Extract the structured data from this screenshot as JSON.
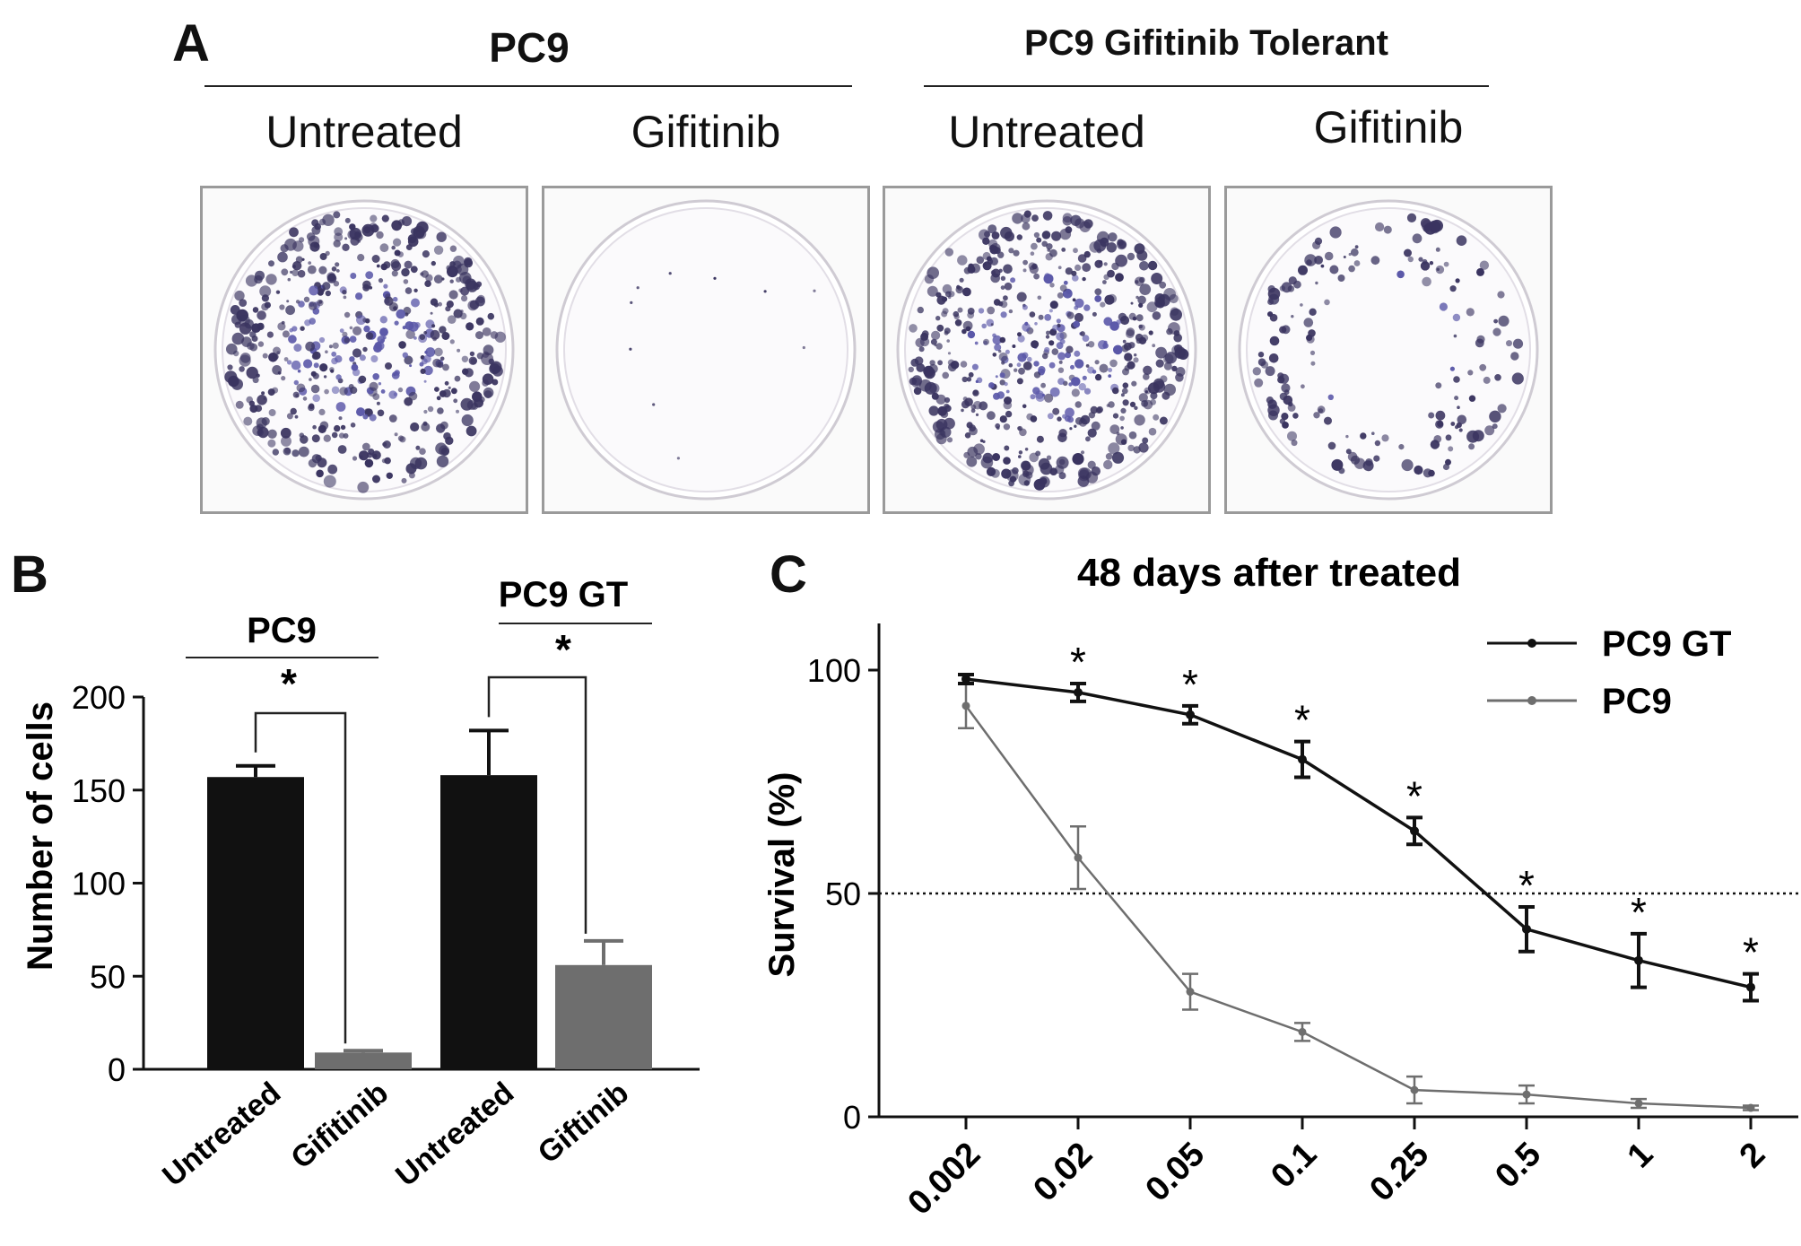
{
  "panel_a": {
    "letter": "A",
    "group1": "PC9",
    "group2": "PC9 Gifitinib Tolerant",
    "conditions": [
      "Untreated",
      "Gifitinib",
      "Untreated",
      "Gifitinib"
    ]
  },
  "panel_b": {
    "letter": "B",
    "sig_label_pc9": "PC9",
    "sig_label_gt": "PC9 GT",
    "star": "*"
  },
  "panel_c": {
    "letter": "C",
    "star": "*"
  },
  "colors": {
    "black_series": "#111111",
    "grey_series": "#6e6e6e",
    "stain": "#3a3460"
  },
  "chart_data": [
    {
      "type": "bar",
      "ylabel": "Number of cells",
      "ylim": [
        0,
        200
      ],
      "yticks": [
        0,
        50,
        100,
        150,
        200
      ],
      "categories": [
        "Untreated",
        "Gifitinib",
        "Untreated",
        "Giftinib"
      ],
      "values": [
        157,
        9,
        158,
        56
      ],
      "errors": [
        6,
        1,
        24,
        13
      ],
      "bar_colors": [
        "#111111",
        "#6e6e6e",
        "#111111",
        "#6e6e6e"
      ],
      "groups": [
        "PC9",
        "PC9 GT"
      ],
      "significance": "*"
    },
    {
      "type": "line",
      "title": "48 days after treated",
      "ylabel": "Survival (%)",
      "ylim": [
        0,
        100
      ],
      "yticks": [
        0,
        50,
        100
      ],
      "x": [
        "0.002",
        "0.02",
        "0.05",
        "0.1",
        "0.25",
        "0.5",
        "1",
        "2"
      ],
      "reference_line": 50,
      "legend_position": "top-right",
      "series": [
        {
          "name": "PC9 GT",
          "color": "#111111",
          "values": [
            98,
            95,
            90,
            80,
            64,
            42,
            35,
            29
          ],
          "errors": [
            1,
            2,
            2,
            4,
            3,
            5,
            6,
            3
          ],
          "significant": [
            false,
            true,
            true,
            true,
            true,
            true,
            true,
            true
          ]
        },
        {
          "name": "PC9",
          "color": "#6e6e6e",
          "values": [
            92,
            58,
            28,
            19,
            6,
            5,
            3,
            2
          ],
          "errors": [
            5,
            7,
            4,
            2,
            3,
            2,
            1,
            0.5
          ]
        }
      ]
    }
  ]
}
